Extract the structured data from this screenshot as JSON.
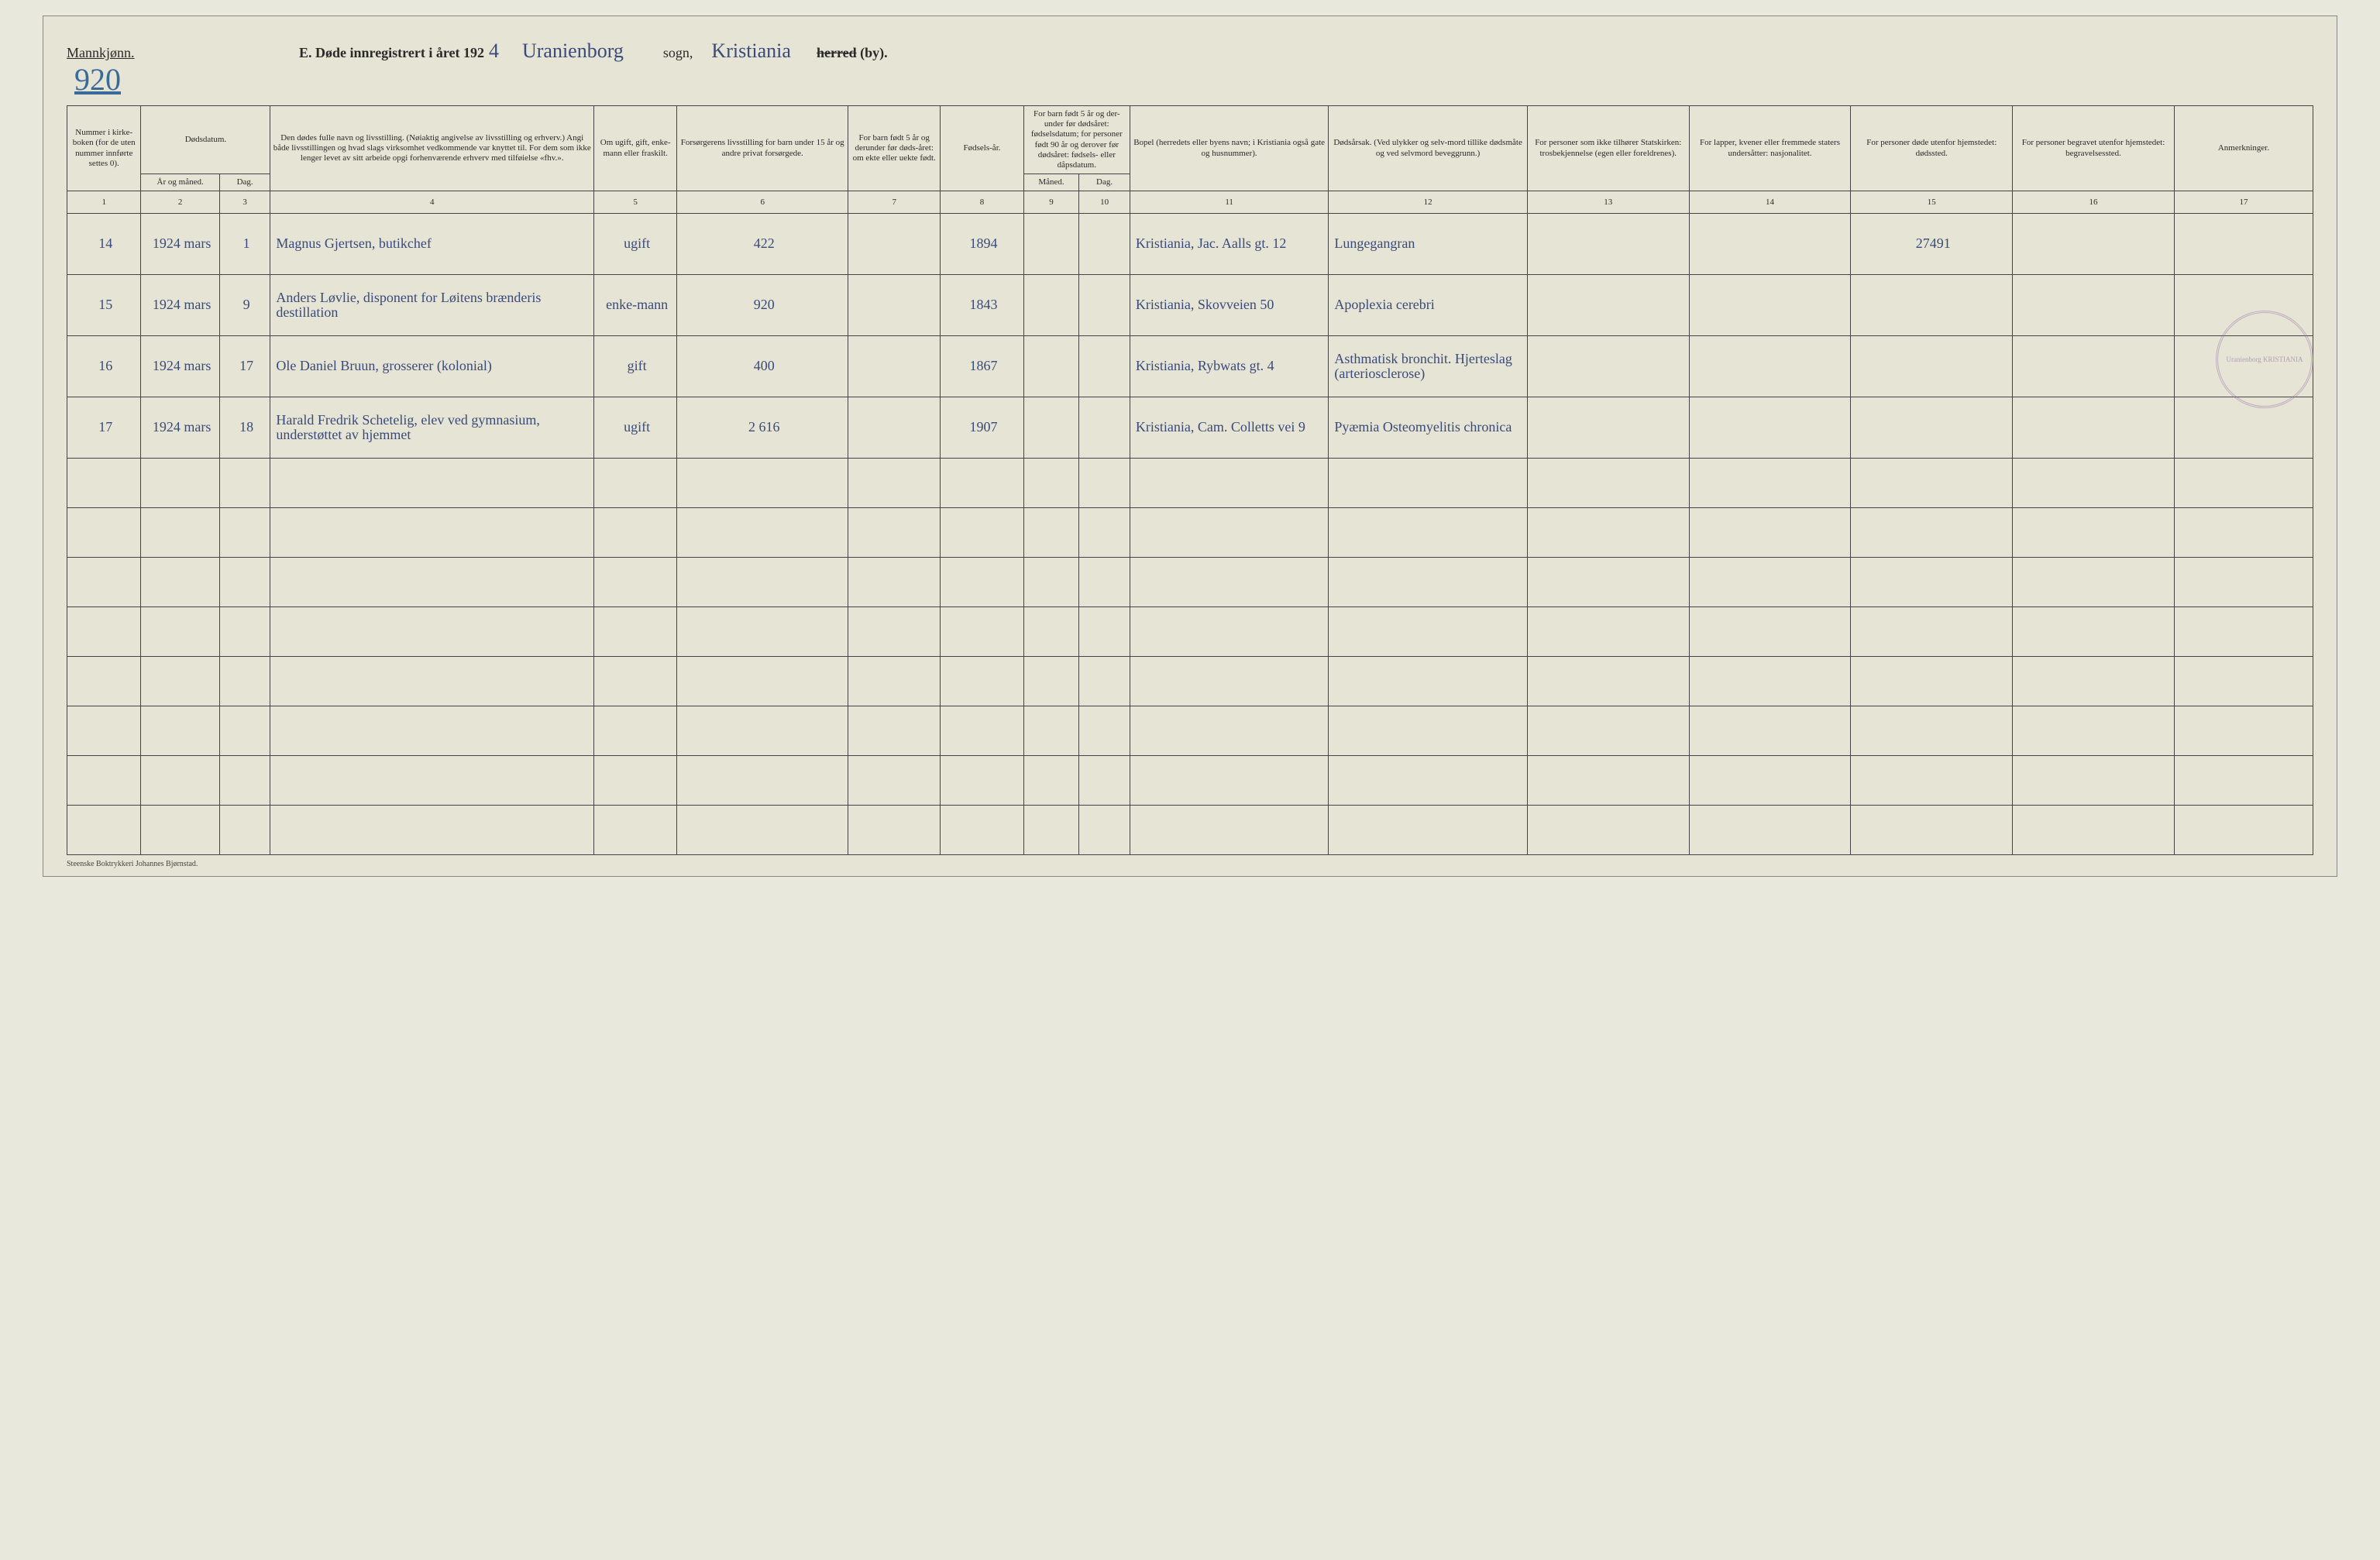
{
  "header": {
    "gender_label": "Mannkjønn.",
    "page_number": "920",
    "title_prefix": "E.  Døde innregistrert i året 192",
    "year_suffix": "4",
    "parish": "Uranienborg",
    "sogn_label": "sogn,",
    "city": "Kristiania",
    "herred_struck": "herred",
    "by_label": "(by)."
  },
  "columns": {
    "c1": "Nummer i kirke-boken (for de uten nummer innførte settes 0).",
    "c2": "Dødsdatum.",
    "c2a": "År og måned.",
    "c2b": "Dag.",
    "c4": "Den dødes fulle navn og livsstilling. (Nøiaktig angivelse av livsstilling og erhverv.) Angi både livsstillingen og hvad slags virksomhet vedkommende var knyttet til. For dem som ikke lenger levet av sitt arbeide opgi forhenværende erhverv med tilføielse «fhv.».",
    "c5": "Om ugift, gift, enke-mann eller fraskilt.",
    "c6": "Forsørgerens livsstilling for barn under 15 år og andre privat forsørgede.",
    "c7": "For barn født 5 år og derunder før døds-året: om ekte eller uekte født.",
    "c8": "Fødsels-år.",
    "c9_10": "For barn født 5 år og der-under før dødsåret: fødselsdatum; for personer født 90 år og derover før dødsåret: fødsels- eller dåpsdatum.",
    "c9": "Måned.",
    "c10": "Dag.",
    "c11": "Bopel (herredets eller byens navn; i Kristiania også gate og husnummer).",
    "c12": "Dødsårsak. (Ved ulykker og selv-mord tillike dødsmåte og ved selvmord beveggrunn.)",
    "c13": "For personer som ikke tilhører Statskirken: trosbekjennelse (egen eller foreldrenes).",
    "c14": "For lapper, kvener eller fremmede staters undersåtter: nasjonalitet.",
    "c15": "For personer døde utenfor hjemstedet: dødssted.",
    "c16": "For personer begravet utenfor hjemstedet: begravelsessted.",
    "c17": "Anmerkninger."
  },
  "colnums": [
    "1",
    "2",
    "3",
    "4",
    "5",
    "6",
    "7",
    "8",
    "9",
    "10",
    "11",
    "12",
    "13",
    "14",
    "15",
    "16",
    "17"
  ],
  "rows": [
    {
      "num": "14",
      "ym": "1924 mars",
      "day": "1",
      "name": "Magnus Gjertsen, butikchef",
      "status": "ugift",
      "provider": "422",
      "birthyear": "1894",
      "residence": "Kristiania, Jac. Aalls gt. 12",
      "cause": "Lungegangran",
      "col15": "27491"
    },
    {
      "num": "15",
      "ym": "1924 mars",
      "day": "9",
      "name": "Anders Løvlie, disponent for Løitens brænderis destillation",
      "status": "enke-mann",
      "provider": "920",
      "birthyear": "1843",
      "residence": "Kristiania, Skovveien 50",
      "cause": "Apoplexia cerebri"
    },
    {
      "num": "16",
      "ym": "1924 mars",
      "day": "17",
      "name": "Ole Daniel Bruun, grosserer (kolonial)",
      "status": "gift",
      "provider": "400",
      "birthyear": "1867",
      "residence": "Kristiania, Rybwats gt. 4",
      "cause": "Asthmatisk bronchit. Hjerteslag (arteriosclerose)"
    },
    {
      "num": "17",
      "ym": "1924 mars",
      "day": "18",
      "name": "Harald Fredrik Schetelig, elev ved gymnasium, understøttet av hjemmet",
      "status": "ugift",
      "provider": "2 616",
      "birthyear": "1907",
      "residence": "Kristiania, Cam. Colletts vei 9",
      "cause": "Pyæmia Osteomyelitis chronica"
    }
  ],
  "empty_rows": 8,
  "stamp_text": "Uranienborg KRISTIANIA",
  "footer": "Steenske Boktrykkeri Johannes Bjørnstad.",
  "widths": {
    "c1": "3.2%",
    "c2a": "3.4%",
    "c2b": "2.2%",
    "c4": "14%",
    "c5": "3.6%",
    "c6": "7.4%",
    "c7": "4%",
    "c8": "3.6%",
    "c9": "2.4%",
    "c10": "2.2%",
    "c11": "8.6%",
    "c12": "8.6%",
    "c13": "7%",
    "c14": "7%",
    "c15": "7%",
    "c16": "7%",
    "c17": "6%"
  }
}
